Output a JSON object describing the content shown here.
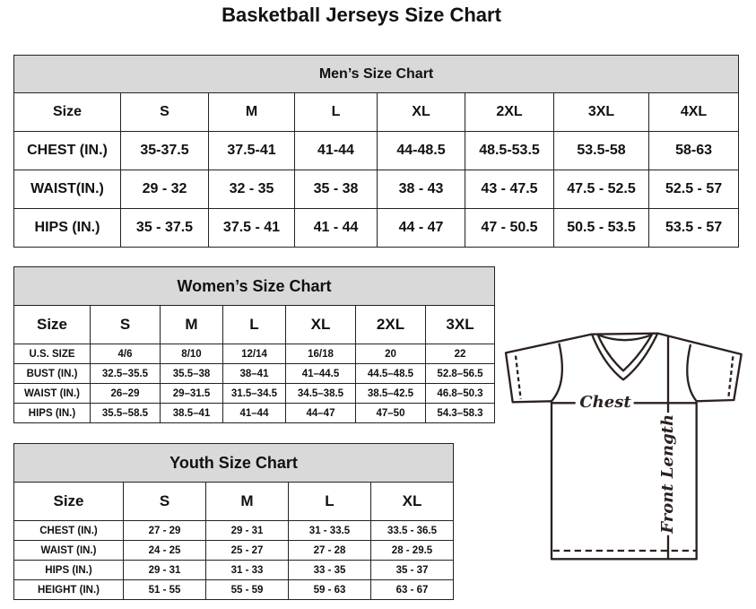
{
  "title": "Basketball Jerseys Size Chart",
  "men": {
    "heading": "Men’s Size Chart",
    "header": [
      "Size",
      "S",
      "M",
      "L",
      "XL",
      "2XL",
      "3XL",
      "4XL"
    ],
    "rows": [
      [
        "CHEST (IN.)",
        "35-37.5",
        "37.5-41",
        "41-44",
        "44-48.5",
        "48.5-53.5",
        "53.5-58",
        "58-63"
      ],
      [
        "WAIST(IN.)",
        "29 - 32",
        "32 - 35",
        "35 - 38",
        "38 - 43",
        "43 - 47.5",
        "47.5 - 52.5",
        "52.5 - 57"
      ],
      [
        "HIPS (IN.)",
        "35 - 37.5",
        "37.5 - 41",
        "41 - 44",
        "44 - 47",
        "47 - 50.5",
        "50.5 - 53.5",
        "53.5 - 57"
      ]
    ]
  },
  "women": {
    "heading": "Women’s Size Chart",
    "header": [
      "Size",
      "S",
      "M",
      "L",
      "XL",
      "2XL",
      "3XL"
    ],
    "rows": [
      [
        "U.S. SIZE",
        "4/6",
        "8/10",
        "12/14",
        "16/18",
        "20",
        "22"
      ],
      [
        "BUST (IN.)",
        "32.5–35.5",
        "35.5–38",
        "38–41",
        "41–44.5",
        "44.5–48.5",
        "52.8–56.5"
      ],
      [
        "WAIST (IN.)",
        "26–29",
        "29–31.5",
        "31.5–34.5",
        "34.5–38.5",
        "38.5–42.5",
        "46.8–50.3"
      ],
      [
        "HIPS (IN.)",
        "35.5–58.5",
        "38.5–41",
        "41–44",
        "44–47",
        "47–50",
        "54.3–58.3"
      ]
    ]
  },
  "youth": {
    "heading": "Youth Size Chart",
    "header": [
      "Size",
      "S",
      "M",
      "L",
      "XL"
    ],
    "rows": [
      [
        "CHEST (IN.)",
        "27 - 29",
        "29 - 31",
        "31 - 33.5",
        "33.5 - 36.5"
      ],
      [
        "WAIST (IN.)",
        "24 - 25",
        "25 - 27",
        "27 - 28",
        "28 - 29.5"
      ],
      [
        "HIPS (IN.)",
        "29 - 31",
        "31 - 33",
        "33 - 35",
        "35 - 37"
      ],
      [
        "HEIGHT (IN.)",
        "51 - 55",
        "55 - 59",
        "59 - 63",
        "63 - 67"
      ]
    ]
  },
  "diagram": {
    "chest_label": "Chest",
    "length_label": "Front Length"
  }
}
